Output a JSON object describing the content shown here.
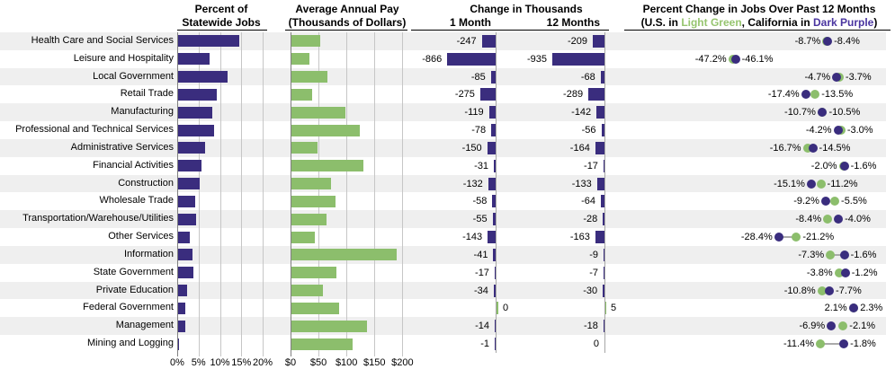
{
  "headers": {
    "panel1_line1": "Percent of",
    "panel1_line2": "Statewide Jobs",
    "panel2_line1": "Average Annual Pay",
    "panel2_line2": "(Thousands of Dollars)",
    "panel3_title": "Change in Thousands",
    "panel3_col1": "1 Month",
    "panel3_col2": "12 Months",
    "panel4_title": "Percent Change in Jobs Over Past 12 Months",
    "panel4_sub_prefix": "(U.S. in ",
    "panel4_sub_green": "Light Green",
    "panel4_sub_mid": ", California in ",
    "panel4_sub_purple": "Dark Purple",
    "panel4_sub_suffix": ")"
  },
  "colors": {
    "dark_purple": "#3A2D7E",
    "light_green": "#8CBE6C",
    "stripe": "#EFEFEF",
    "grid": "#C6C6C6",
    "axis": "#808080",
    "baseline": "#A6A6A6",
    "connector": "#AAAAAA"
  },
  "axes": {
    "percent_ticks": [
      "0%",
      "5%",
      "10%",
      "15%",
      "20%"
    ],
    "pay_ticks": [
      "$0",
      "$50",
      "$100",
      "$150",
      "$200"
    ]
  },
  "chart_data": {
    "type": "multi-panel",
    "categories": [
      "Health Care and Social Services",
      "Leisure and Hospitality",
      "Local Government",
      "Retail Trade",
      "Manufacturing",
      "Professional and Technical Services",
      "Administrative Services",
      "Financial Activities",
      "Construction",
      "Wholesale Trade",
      "Transportation/Warehouse/Utilities",
      "Other Services",
      "Information",
      "State Government",
      "Private Education",
      "Federal Government",
      "Management",
      "Mining and Logging"
    ],
    "panels": [
      {
        "id": "pct_jobs",
        "type": "bar",
        "title": "Percent of Statewide Jobs",
        "xlim": [
          0,
          20
        ],
        "tick_labels": [
          "0%",
          "5%",
          "10%",
          "15%",
          "20%"
        ],
        "values": [
          14.4,
          7.4,
          11.5,
          9.0,
          8.0,
          8.4,
          6.4,
          5.4,
          5.0,
          4.1,
          4.3,
          2.7,
          3.4,
          3.5,
          2.2,
          1.6,
          1.7,
          0.15
        ]
      },
      {
        "id": "avg_pay",
        "type": "bar",
        "title": "Average Annual Pay (Thousands of Dollars)",
        "xlim": [
          0,
          200
        ],
        "tick_labels": [
          "$0",
          "$50",
          "$100",
          "$150",
          "$200"
        ],
        "values": [
          52,
          32,
          65,
          37,
          96,
          122,
          46,
          128,
          70,
          78,
          63,
          41,
          188,
          80,
          57,
          86,
          135,
          110
        ]
      },
      {
        "id": "change_1_month",
        "type": "bar",
        "title": "Change in Thousands - 1 Month",
        "values": [
          -247,
          -866,
          -85,
          -275,
          -119,
          -78,
          -150,
          -31,
          -132,
          -58,
          -55,
          -143,
          -41,
          -17,
          -34,
          0,
          -14,
          -1
        ],
        "labels": [
          "-247",
          "-866",
          "-85",
          "-275",
          "-119",
          "-78",
          "-150",
          "-31",
          "-132",
          "-58",
          "-55",
          "-143",
          "-41",
          "-17",
          "-34",
          "0",
          "-14",
          "-1"
        ],
        "label_side": [
          "left",
          "left",
          "left",
          "left",
          "left",
          "left",
          "left",
          "left",
          "left",
          "left",
          "left",
          "left",
          "left",
          "left",
          "left",
          "right",
          "left",
          "left"
        ]
      },
      {
        "id": "change_12_months",
        "type": "bar",
        "title": "Change in Thousands - 12 Months",
        "values": [
          -209,
          -935,
          -68,
          -289,
          -142,
          -56,
          -164,
          -17,
          -133,
          -64,
          -28,
          -163,
          -9,
          -7,
          -30,
          5,
          -18,
          0
        ],
        "labels": [
          "-209",
          "-935",
          "-68",
          "-289",
          "-142",
          "-56",
          "-164",
          "-17",
          "-133",
          "-64",
          "-28",
          "-163",
          "-9",
          "-7",
          "-30",
          "5",
          "-18",
          "0"
        ],
        "label_side": [
          "left",
          "left",
          "left",
          "left",
          "left",
          "left",
          "left",
          "left",
          "left",
          "left",
          "left",
          "left",
          "left",
          "left",
          "left",
          "right",
          "left",
          "left"
        ]
      },
      {
        "id": "pct_change_12_months",
        "type": "scatter",
        "title": "Percent Change in Jobs Over Past 12 Months",
        "series": [
          {
            "name": "U.S.",
            "color_key": "light_green",
            "values": [
              -8.7,
              -47.2,
              -3.7,
              -13.5,
              -10.7,
              -3.0,
              -16.7,
              -2.0,
              -11.2,
              -5.5,
              -8.4,
              -21.2,
              -7.3,
              -3.8,
              -10.8,
              2.1,
              -2.1,
              -11.4
            ]
          },
          {
            "name": "California",
            "color_key": "dark_purple",
            "values": [
              -8.4,
              -46.1,
              -4.7,
              -17.4,
              -10.5,
              -4.2,
              -14.5,
              -1.6,
              -15.1,
              -9.2,
              -4.0,
              -28.4,
              -1.6,
              -1.2,
              -7.7,
              2.3,
              -6.9,
              -1.8
            ]
          }
        ],
        "left_labels": [
          "-8.7%",
          "-47.2%",
          "-4.7%",
          "-17.4%",
          "-10.7%",
          "-4.2%",
          "-16.7%",
          "-2.0%",
          "-15.1%",
          "-9.2%",
          "-8.4%",
          "-28.4%",
          "-7.3%",
          "-3.8%",
          "-10.8%",
          "2.1%",
          "-6.9%",
          "-11.4%"
        ],
        "right_labels": [
          "-8.4%",
          "-46.1%",
          "-3.7%",
          "-13.5%",
          "-10.5%",
          "-3.0%",
          "-14.5%",
          "-1.6%",
          "-11.2%",
          "-5.5%",
          "-4.0%",
          "-21.2%",
          "-1.6%",
          "-1.2%",
          "-7.7%",
          "2.3%",
          "-2.1%",
          "-1.8%"
        ]
      }
    ]
  }
}
